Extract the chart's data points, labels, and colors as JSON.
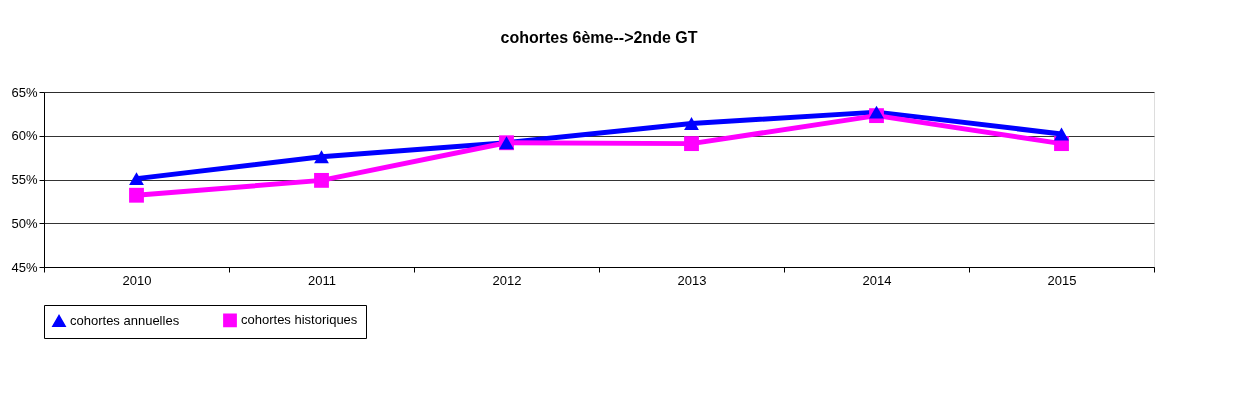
{
  "chart_data": {
    "type": "line",
    "title": "cohortes 6ème-->2nde GT",
    "categories": [
      "2010",
      "2011",
      "2012",
      "2013",
      "2014",
      "2015"
    ],
    "series": [
      {
        "name": "cohortes annuelles",
        "color": "#0000ff",
        "marker": "triangle",
        "values": [
          55.1,
          57.6,
          59.2,
          61.4,
          62.7,
          60.2
        ]
      },
      {
        "name": "cohortes historiques",
        "color": "#ff00ff",
        "marker": "square",
        "values": [
          53.2,
          54.9,
          59.2,
          59.1,
          62.3,
          59.1
        ]
      }
    ],
    "ylim": [
      45,
      65
    ],
    "yticks": [
      {
        "value": 45,
        "label": "45%"
      },
      {
        "value": 50,
        "label": "50%"
      },
      {
        "value": 55,
        "label": "55%"
      },
      {
        "value": 60,
        "label": "60%"
      },
      {
        "value": 65,
        "label": "65%"
      }
    ],
    "grid": "y",
    "legend": "bottom",
    "line_style": "solid"
  }
}
